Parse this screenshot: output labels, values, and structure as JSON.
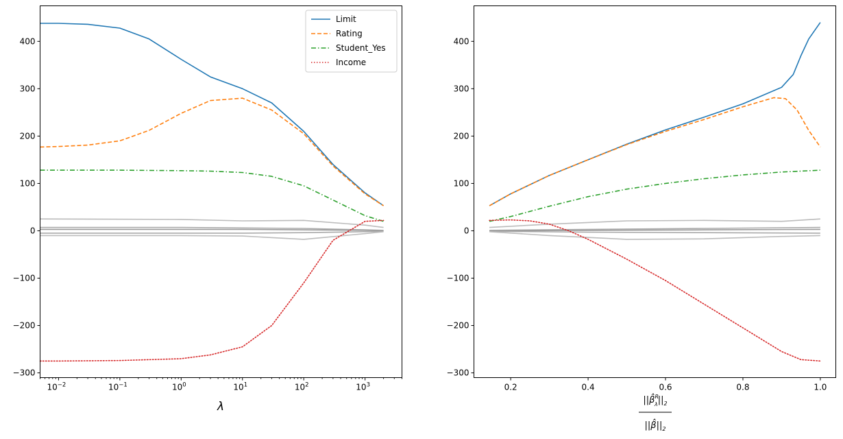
{
  "chart_data": [
    {
      "type": "line",
      "xscale": "log",
      "xlim": [
        0.005,
        4000
      ],
      "ylim": [
        -310,
        475
      ],
      "xlabel": "λ",
      "ylabel": "",
      "xticks": [
        {
          "value": 0.01,
          "base": "10",
          "exp": "−2"
        },
        {
          "value": 0.1,
          "base": "10",
          "exp": "−1"
        },
        {
          "value": 1,
          "base": "10",
          "exp": "0"
        },
        {
          "value": 10,
          "base": "10",
          "exp": "1"
        },
        {
          "value": 100,
          "base": "10",
          "exp": "2"
        },
        {
          "value": 1000,
          "base": "10",
          "exp": "3"
        }
      ],
      "yticks": [
        "400",
        "300",
        "200",
        "100",
        "0",
        "−100",
        "−200",
        "−300"
      ],
      "ytick_values": [
        400,
        300,
        200,
        100,
        0,
        -100,
        -200,
        -300
      ],
      "legend": {
        "placement": "upper-right",
        "entries": [
          "Limit",
          "Rating",
          "Student_Yes",
          "Income"
        ]
      },
      "series": [
        {
          "name": "Limit",
          "color": "#1f77b4",
          "style": "solid",
          "x": [
            0.005,
            0.01,
            0.03,
            0.1,
            0.3,
            1,
            3,
            10,
            30,
            100,
            300,
            1000,
            2000
          ],
          "y": [
            438,
            438,
            436,
            428,
            405,
            362,
            325,
            300,
            270,
            210,
            140,
            80,
            53
          ]
        },
        {
          "name": "Rating",
          "color": "#ff7f0e",
          "style": "dashed",
          "x": [
            0.005,
            0.01,
            0.03,
            0.1,
            0.3,
            1,
            3,
            10,
            30,
            100,
            300,
            1000,
            2000
          ],
          "y": [
            177,
            178,
            181,
            190,
            212,
            248,
            275,
            280,
            255,
            205,
            137,
            78,
            53
          ]
        },
        {
          "name": "Student_Yes",
          "color": "#2ca02c",
          "style": "dashdot",
          "x": [
            0.005,
            0.01,
            0.1,
            1,
            3,
            10,
            30,
            100,
            300,
            1000,
            2000
          ],
          "y": [
            128,
            128,
            128,
            127,
            126,
            123,
            115,
            95,
            65,
            32,
            20
          ]
        },
        {
          "name": "Income",
          "color": "#d62728",
          "style": "dotted",
          "x": [
            0.005,
            0.01,
            0.1,
            1,
            3,
            10,
            30,
            100,
            300,
            1000,
            2000
          ],
          "y": [
            -275,
            -275,
            -274,
            -270,
            -262,
            -245,
            -200,
            -110,
            -20,
            20,
            22
          ]
        },
        {
          "color": "#bbbbbb",
          "style": "solid",
          "x": [
            0.005,
            1,
            10,
            100,
            1000,
            2000
          ],
          "y": [
            25,
            24,
            21,
            22,
            12,
            7
          ]
        },
        {
          "color": "#aaaaaa",
          "style": "solid",
          "x": [
            0.005,
            1,
            10,
            100,
            1000,
            2000
          ],
          "y": [
            7,
            7,
            6,
            5,
            2,
            1
          ]
        },
        {
          "color": "#999999",
          "style": "solid",
          "x": [
            0.005,
            1,
            10,
            100,
            1000,
            2000
          ],
          "y": [
            3,
            3,
            3,
            2,
            1,
            0
          ]
        },
        {
          "color": "#aaaaaa",
          "style": "solid",
          "x": [
            0.005,
            1,
            10,
            100,
            1000,
            2000
          ],
          "y": [
            -5,
            -5,
            -5,
            -4,
            -2,
            -1
          ]
        },
        {
          "color": "#bbbbbb",
          "style": "solid",
          "x": [
            0.005,
            1,
            10,
            100,
            1000,
            2000
          ],
          "y": [
            -10,
            -10,
            -11,
            -18,
            -6,
            -2
          ]
        }
      ]
    },
    {
      "type": "line",
      "xscale": "linear",
      "xlim": [
        0.105,
        1.04
      ],
      "ylim": [
        -310,
        475
      ],
      "xlabel_numerator": "||β̂",
      "xlabel_numerator_sup": "R",
      "xlabel_numerator_sub": "λ",
      "xlabel_numerator_tail": "||",
      "xlabel_numerator_tail_sub": "2",
      "xlabel_denominator": "||β̂||",
      "xlabel_denominator_sub": "2",
      "ylabel": "",
      "xticks": [
        "0.2",
        "0.4",
        "0.6",
        "0.8",
        "1.0"
      ],
      "xtick_values": [
        0.2,
        0.4,
        0.6,
        0.8,
        1.0
      ],
      "yticks": [
        "400",
        "300",
        "200",
        "100",
        "0",
        "−100",
        "−200",
        "−300"
      ],
      "ytick_values": [
        400,
        300,
        200,
        100,
        0,
        -100,
        -200,
        -300
      ],
      "series": [
        {
          "name": "Limit",
          "color": "#1f77b4",
          "style": "solid",
          "x": [
            0.145,
            0.2,
            0.3,
            0.4,
            0.5,
            0.6,
            0.7,
            0.8,
            0.9,
            0.93,
            0.95,
            0.97,
            1.0
          ],
          "y": [
            53,
            78,
            117,
            150,
            183,
            213,
            240,
            268,
            303,
            330,
            370,
            405,
            440
          ]
        },
        {
          "name": "Rating",
          "color": "#ff7f0e",
          "style": "dashed",
          "x": [
            0.145,
            0.2,
            0.3,
            0.4,
            0.5,
            0.6,
            0.7,
            0.8,
            0.88,
            0.91,
            0.94,
            0.97,
            1.0
          ],
          "y": [
            53,
            78,
            117,
            150,
            182,
            210,
            235,
            262,
            281,
            279,
            255,
            212,
            177
          ]
        },
        {
          "name": "Student_Yes",
          "color": "#2ca02c",
          "style": "dashdot",
          "x": [
            0.145,
            0.2,
            0.3,
            0.4,
            0.5,
            0.6,
            0.7,
            0.8,
            0.9,
            1.0
          ],
          "y": [
            20,
            30,
            52,
            72,
            88,
            100,
            110,
            118,
            124,
            128
          ]
        },
        {
          "name": "Income",
          "color": "#d62728",
          "style": "dotted",
          "x": [
            0.145,
            0.2,
            0.25,
            0.3,
            0.35,
            0.4,
            0.5,
            0.6,
            0.7,
            0.8,
            0.9,
            0.95,
            1.0
          ],
          "y": [
            22,
            23,
            21,
            14,
            0,
            -18,
            -60,
            -105,
            -155,
            -205,
            -255,
            -272,
            -275
          ]
        },
        {
          "color": "#bbbbbb",
          "style": "solid",
          "x": [
            0.145,
            0.3,
            0.5,
            0.7,
            0.9,
            1.0
          ],
          "y": [
            7,
            14,
            21,
            22,
            20,
            25
          ]
        },
        {
          "color": "#aaaaaa",
          "style": "solid",
          "x": [
            0.145,
            0.4,
            0.7,
            1.0
          ],
          "y": [
            1,
            3,
            5,
            7
          ]
        },
        {
          "color": "#999999",
          "style": "solid",
          "x": [
            0.145,
            0.4,
            0.7,
            1.0
          ],
          "y": [
            0,
            1,
            2,
            3
          ]
        },
        {
          "color": "#aaaaaa",
          "style": "solid",
          "x": [
            0.145,
            0.4,
            0.7,
            1.0
          ],
          "y": [
            -1,
            -3,
            -4,
            -5
          ]
        },
        {
          "color": "#bbbbbb",
          "style": "solid",
          "x": [
            0.145,
            0.3,
            0.5,
            0.7,
            0.9,
            1.0
          ],
          "y": [
            -2,
            -10,
            -18,
            -17,
            -12,
            -10
          ]
        }
      ]
    }
  ]
}
